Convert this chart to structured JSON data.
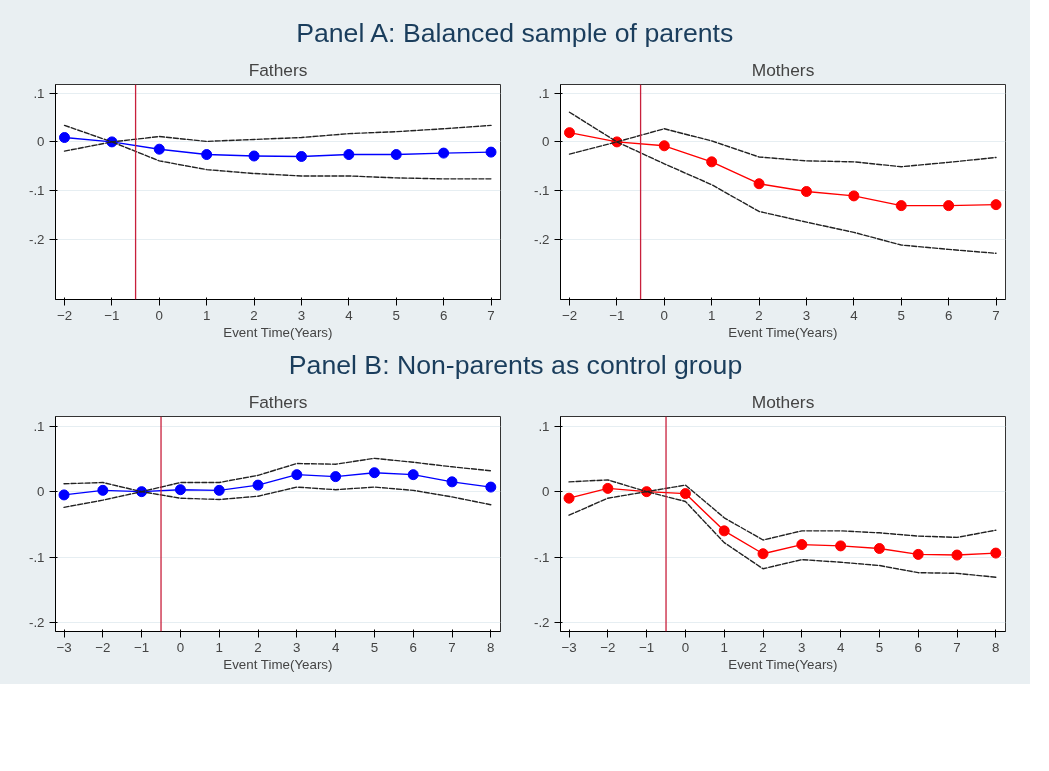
{
  "chart_data": [
    {
      "type": "other",
      "title": "Panel A: Balanced sample of parents"
    },
    {
      "type": "line",
      "title": "Fathers",
      "xlabel": "Event Time(Years)",
      "x": [
        -2,
        -1,
        0,
        1,
        2,
        3,
        4,
        5,
        6,
        7
      ],
      "xlim": [
        -2.19,
        7.2
      ],
      "xticks": [
        -2,
        -1,
        0,
        1,
        2,
        3,
        4,
        5,
        6,
        7
      ],
      "ylim": [
        -0.324,
        0.118
      ],
      "yticks": [
        {
          "value": 0.1,
          "label": ".1"
        },
        {
          "value": 0,
          "label": "0"
        },
        {
          "value": -0.1,
          "label": "-.1"
        },
        {
          "value": -0.2,
          "label": "-.2"
        }
      ],
      "grid": "y",
      "ref_lines": [
        {
          "axis": "x",
          "value": -0.5,
          "color": "#c8203c"
        }
      ],
      "series": [
        {
          "color": "#0000ff",
          "marker": "circle",
          "line_style": "solid",
          "values": [
            0.009,
            0,
            -0.015,
            -0.026,
            -0.029,
            -0.03,
            -0.026,
            -0.026,
            -0.023,
            -0.021
          ]
        },
        {
          "color": "#222222",
          "marker": "none",
          "line_style": "dashed",
          "values": [
            0.034,
            0,
            0.011,
            0.001,
            0.005,
            0.009,
            0.017,
            0.021,
            0.027,
            0.034
          ]
        },
        {
          "color": "#222222",
          "marker": "none",
          "line_style": "dashed",
          "values": [
            -0.019,
            0,
            -0.039,
            -0.057,
            -0.065,
            -0.07,
            -0.07,
            -0.074,
            -0.076,
            -0.076
          ]
        }
      ]
    },
    {
      "type": "line",
      "title": "Mothers",
      "xlabel": "Event Time(Years)",
      "x": [
        -2,
        -1,
        0,
        1,
        2,
        3,
        4,
        5,
        6,
        7
      ],
      "xlim": [
        -2.19,
        7.2
      ],
      "xticks": [
        -2,
        -1,
        0,
        1,
        2,
        3,
        4,
        5,
        6,
        7
      ],
      "ylim": [
        -0.324,
        0.118
      ],
      "yticks": [
        {
          "value": 0.1,
          "label": ".1"
        },
        {
          "value": 0,
          "label": "0"
        },
        {
          "value": -0.1,
          "label": "-.1"
        },
        {
          "value": -0.2,
          "label": "-.2"
        }
      ],
      "grid": "y",
      "ref_lines": [
        {
          "axis": "x",
          "value": -0.5,
          "color": "#c8203c"
        }
      ],
      "series": [
        {
          "color": "#ff0000",
          "marker": "circle",
          "line_style": "solid",
          "values": [
            0.019,
            0,
            -0.008,
            -0.041,
            -0.086,
            -0.102,
            -0.111,
            -0.131,
            -0.131,
            -0.129
          ]
        },
        {
          "color": "#222222",
          "marker": "none",
          "line_style": "dashed",
          "values": [
            0.061,
            0,
            0.027,
            0.002,
            -0.031,
            -0.039,
            -0.041,
            -0.051,
            -0.042,
            -0.032
          ]
        },
        {
          "color": "#222222",
          "marker": "none",
          "line_style": "dashed",
          "values": [
            -0.025,
            0,
            -0.045,
            -0.088,
            -0.143,
            -0.165,
            -0.186,
            -0.212,
            -0.221,
            -0.229
          ]
        }
      ]
    },
    {
      "type": "other",
      "title": "Panel B: Non-parents as control group"
    },
    {
      "type": "line",
      "title": "Fathers",
      "xlabel": "Event Time(Years)",
      "x": [
        -3,
        -2,
        -1,
        0,
        1,
        2,
        3,
        4,
        5,
        6,
        7,
        8
      ],
      "xlim": [
        -3.22,
        8.25
      ],
      "xticks": [
        -3,
        -2,
        -1,
        0,
        1,
        2,
        3,
        4,
        5,
        6,
        7,
        8
      ],
      "ylim": [
        -0.214,
        0.115
      ],
      "yticks": [
        {
          "value": 0.1,
          "label": ".1"
        },
        {
          "value": 0,
          "label": "0"
        },
        {
          "value": -0.1,
          "label": "-.1"
        },
        {
          "value": -0.2,
          "label": "-.2"
        }
      ],
      "grid": "y",
      "ref_lines": [
        {
          "axis": "x",
          "value": -0.5,
          "color": "#c8203c"
        }
      ],
      "series": [
        {
          "color": "#0000ff",
          "marker": "circle",
          "line_style": "solid",
          "values": [
            -0.005,
            0.002,
            0,
            0.003,
            0.002,
            0.01,
            0.026,
            0.023,
            0.029,
            0.026,
            0.015,
            0.007
          ]
        },
        {
          "color": "#222222",
          "marker": "none",
          "line_style": "dashed",
          "values": [
            0.012,
            0.014,
            0,
            0.014,
            0.014,
            0.025,
            0.043,
            0.042,
            0.051,
            0.045,
            0.038,
            0.032
          ]
        },
        {
          "color": "#222222",
          "marker": "none",
          "line_style": "dashed",
          "values": [
            -0.024,
            -0.013,
            0,
            -0.01,
            -0.012,
            -0.007,
            0.007,
            0.003,
            0.007,
            0.002,
            -0.008,
            -0.02
          ]
        }
      ]
    },
    {
      "type": "line",
      "title": "Mothers",
      "xlabel": "Event Time(Years)",
      "x": [
        -3,
        -2,
        -1,
        0,
        1,
        2,
        3,
        4,
        5,
        6,
        7,
        8
      ],
      "xlim": [
        -3.22,
        8.25
      ],
      "xticks": [
        -3,
        -2,
        -1,
        0,
        1,
        2,
        3,
        4,
        5,
        6,
        7,
        8
      ],
      "ylim": [
        -0.214,
        0.115
      ],
      "yticks": [
        {
          "value": 0.1,
          "label": ".1"
        },
        {
          "value": 0,
          "label": "0"
        },
        {
          "value": -0.1,
          "label": "-.1"
        },
        {
          "value": -0.2,
          "label": "-.2"
        }
      ],
      "grid": "y",
      "ref_lines": [
        {
          "axis": "x",
          "value": -0.5,
          "color": "#c8203c"
        }
      ],
      "series": [
        {
          "color": "#ff0000",
          "marker": "circle",
          "line_style": "solid",
          "values": [
            -0.01,
            0.005,
            0,
            -0.003,
            -0.06,
            -0.095,
            -0.081,
            -0.083,
            -0.087,
            -0.096,
            -0.097,
            -0.094
          ]
        },
        {
          "color": "#222222",
          "marker": "none",
          "line_style": "dashed",
          "values": [
            0.015,
            0.018,
            0,
            0.01,
            -0.04,
            -0.074,
            -0.06,
            -0.06,
            -0.063,
            -0.068,
            -0.07,
            -0.059
          ]
        },
        {
          "color": "#222222",
          "marker": "none",
          "line_style": "dashed",
          "values": [
            -0.036,
            -0.01,
            0,
            -0.015,
            -0.078,
            -0.118,
            -0.104,
            -0.108,
            -0.113,
            -0.124,
            -0.125,
            -0.131
          ]
        }
      ]
    }
  ]
}
